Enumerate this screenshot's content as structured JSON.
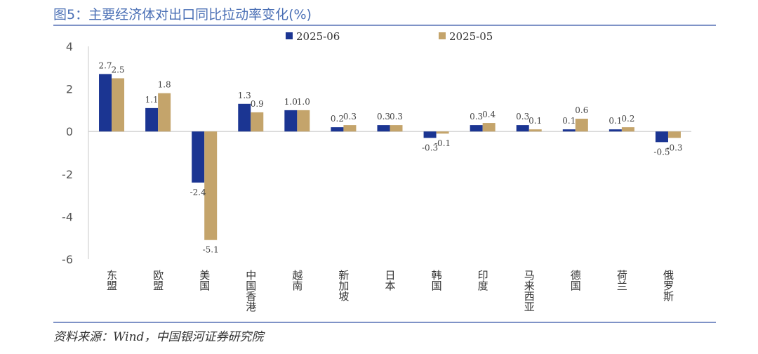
{
  "title": "图5：主要经济体对出口同比拉动率变化(%)",
  "source": "资料来源：Wind，中国银河证券研究院",
  "colors": {
    "series_a": "#1b3592",
    "series_b": "#c4a46b",
    "axis": "#7f93c7"
  },
  "chart_data": {
    "type": "bar",
    "categories": [
      "东盟",
      "欧盟",
      "美国",
      "中国香港",
      "越南",
      "新加坡",
      "日本",
      "韩国",
      "印度",
      "马来西亚",
      "德国",
      "荷兰",
      "俄罗斯"
    ],
    "series": [
      {
        "name": "2025-06",
        "values": [
          2.7,
          1.1,
          -2.4,
          1.3,
          1.0,
          0.2,
          0.3,
          -0.3,
          0.3,
          0.3,
          0.1,
          0.1,
          -0.5
        ]
      },
      {
        "name": "2025-05",
        "values": [
          2.5,
          1.8,
          -5.1,
          0.9,
          1.0,
          0.3,
          0.3,
          -0.1,
          0.4,
          0.1,
          0.6,
          0.2,
          -0.3
        ]
      }
    ],
    "ylim": [
      -6,
      4
    ],
    "yticks": [
      4,
      2,
      0,
      -2,
      -4,
      -6
    ],
    "ytick_labels": [
      "4",
      "2",
      "0",
      "-2",
      "-4",
      "-6"
    ],
    "legend_placement": "top",
    "xlabel": "",
    "ylabel": "",
    "grid": false
  }
}
